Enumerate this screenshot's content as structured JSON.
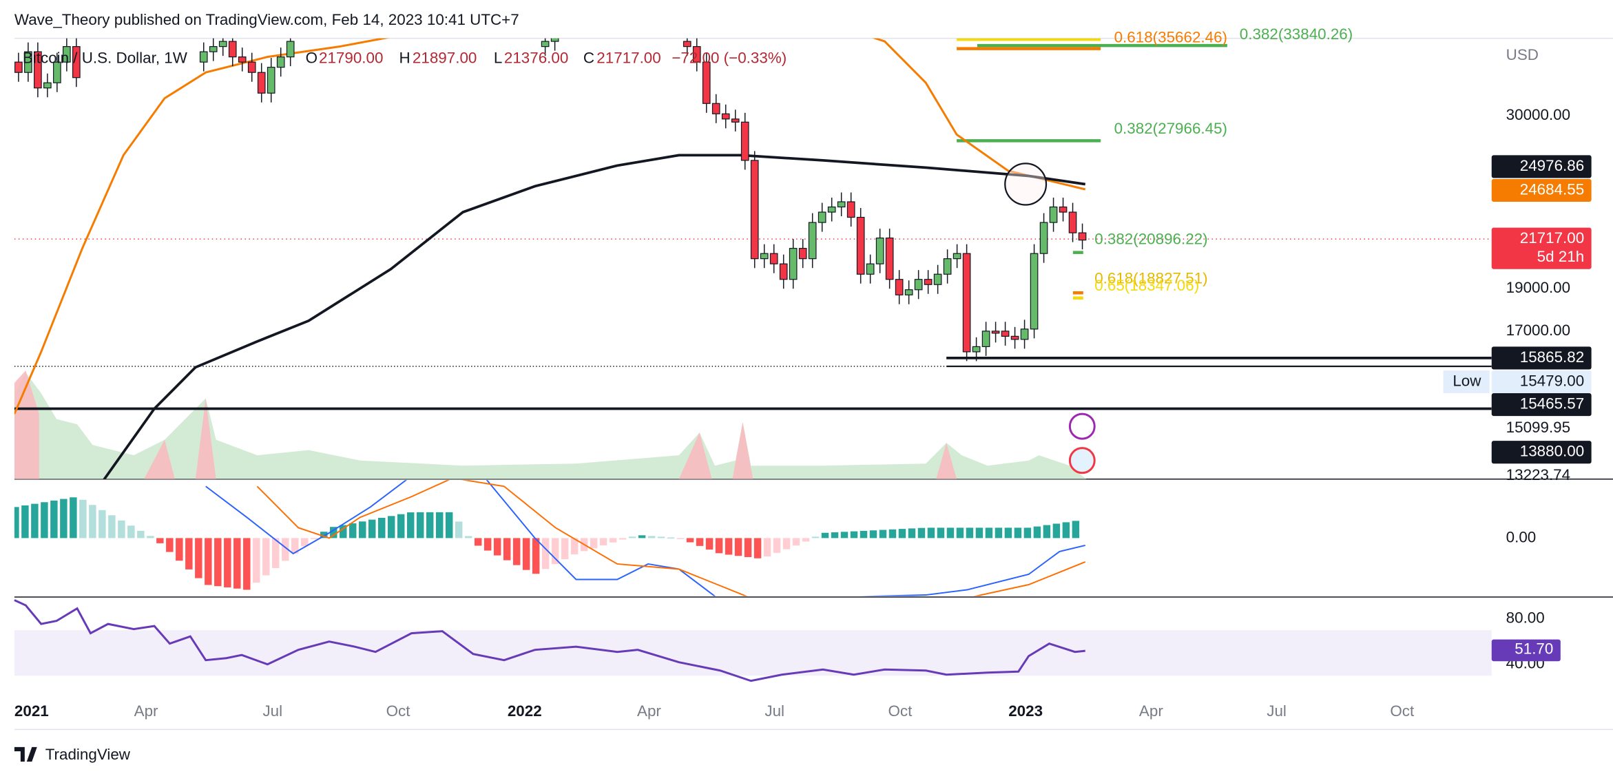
{
  "header": "Wave_Theory published on TradingView.com, Feb 14, 2023 10:41 UTC+7",
  "legend": {
    "symbol": "Bitcoin / U.S. Dollar, 1W",
    "ohlc": [
      {
        "key": "O",
        "value": "21790.00"
      },
      {
        "key": "H",
        "value": "21897.00"
      },
      {
        "key": "L",
        "value": "21376.00"
      },
      {
        "key": "C",
        "value": "21717.00"
      }
    ],
    "change": "−72.00 (−0.33%)"
  },
  "price_axis": {
    "unit": "USD",
    "labels": [
      "30000.00",
      "19000.00",
      "17000.00",
      "15099.95",
      "13223.74"
    ]
  },
  "price_tags": [
    {
      "value": "24976.86"
    },
    {
      "value": "24684.55"
    },
    {
      "value": "21717.00",
      "countdown": "5d 21h"
    },
    {
      "value": "15865.82"
    },
    {
      "value": "15479.00",
      "label": "Low"
    },
    {
      "value": "15465.57"
    },
    {
      "value": "13880.00"
    }
  ],
  "fib_levels": [
    "0.618(35662.46)",
    "0.382(33840.26)",
    "0.382(27966.45)",
    "0.382(20896.22)",
    "0.618(18827.51)",
    "0.65(18347.06)"
  ],
  "macd_axis": [
    "0.00"
  ],
  "rsi_axis": [
    "80.00",
    "40.00"
  ],
  "rsi_value": "51.70",
  "time_axis": [
    "2021",
    "Apr",
    "Jul",
    "Oct",
    "2022",
    "Apr",
    "Jul",
    "Oct",
    "2023",
    "Apr",
    "Jul",
    "Oct"
  ],
  "footer": "TradingView"
}
